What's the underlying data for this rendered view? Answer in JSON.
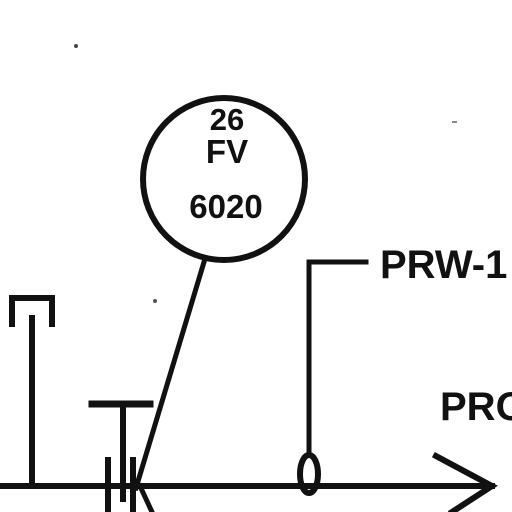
{
  "instrument_bubble": {
    "tag_prefix": "26",
    "function_code": "FV",
    "loop_number": "6020"
  },
  "line_labels": {
    "line_tag": "PRW-1",
    "offpage_label": "PRO"
  }
}
